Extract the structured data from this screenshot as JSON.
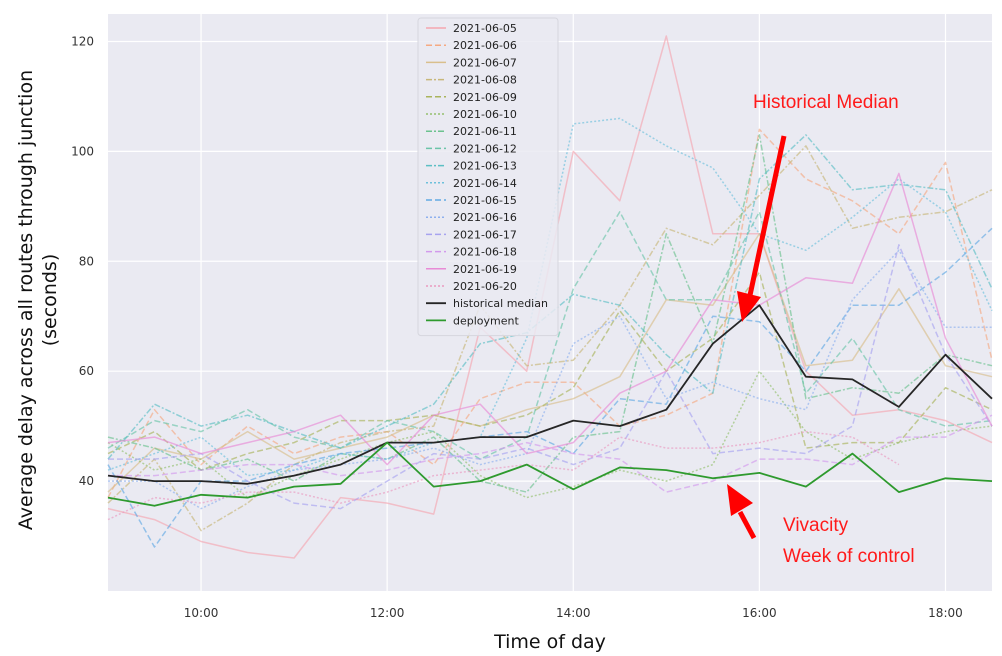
{
  "chart_data": {
    "type": "line",
    "xlabel": "Time of day",
    "ylabel_lines": [
      "Average delay across all routes through junction",
      "(seconds)"
    ],
    "xlim": [
      9.0,
      18.5
    ],
    "ylim": [
      20,
      125
    ],
    "x_ticks": [
      {
        "value": 10,
        "label": "10:00"
      },
      {
        "value": 12,
        "label": "12:00"
      },
      {
        "value": 14,
        "label": "14:00"
      },
      {
        "value": 16,
        "label": "16:00"
      },
      {
        "value": 18,
        "label": "18:00"
      }
    ],
    "y_ticks": [
      {
        "value": 40,
        "label": "40"
      },
      {
        "value": 60,
        "label": "60"
      },
      {
        "value": 80,
        "label": "80"
      },
      {
        "value": 100,
        "label": "100"
      },
      {
        "value": 120,
        "label": "120"
      }
    ],
    "grid": true,
    "legend_position": "top-center",
    "x": [
      9.0,
      9.5,
      10.0,
      10.5,
      11.0,
      11.5,
      12.0,
      12.5,
      13.0,
      13.5,
      14.0,
      14.5,
      15.0,
      15.5,
      16.0,
      16.5,
      17.0,
      17.5,
      18.0,
      18.5
    ],
    "series": [
      {
        "name": "2021-06-05",
        "color": "#f4a6b0",
        "dash": "",
        "values": [
          35,
          33,
          29,
          27,
          26,
          37,
          36,
          34,
          68,
          60,
          100,
          91,
          121,
          85,
          85,
          60,
          52,
          53,
          51,
          47
        ]
      },
      {
        "name": "2021-06-06",
        "color": "#f5a982",
        "dash": "6,3",
        "values": [
          37,
          53,
          43,
          50,
          45,
          48,
          49,
          43,
          55,
          58,
          58,
          50,
          52,
          56,
          104,
          95,
          91,
          85,
          98,
          62
        ]
      },
      {
        "name": "2021-06-07",
        "color": "#d9bf8c",
        "dash": "",
        "values": [
          38,
          46,
          44,
          49,
          44,
          46,
          48,
          52,
          50,
          53,
          55,
          59,
          73,
          72,
          85,
          61,
          62,
          75,
          61,
          59
        ]
      },
      {
        "name": "2021-06-08",
        "color": "#c8b77a",
        "dash": "6,2,2,2",
        "values": [
          36,
          44,
          31,
          36,
          43,
          47,
          49,
          50,
          72,
          61,
          62,
          72,
          86,
          83,
          92,
          101,
          86,
          88,
          89,
          93
        ]
      },
      {
        "name": "2021-06-09",
        "color": "#a9b45c",
        "dash": "6,3",
        "values": [
          45,
          49,
          42,
          45,
          47,
          51,
          51,
          52,
          50,
          52,
          57,
          71,
          60,
          66,
          78,
          46,
          47,
          47,
          57,
          53
        ]
      },
      {
        "name": "2021-06-10",
        "color": "#94c06e",
        "dash": "2,2",
        "values": [
          47,
          42,
          44,
          37,
          41,
          44,
          47,
          49,
          41,
          37,
          39,
          42,
          40,
          43,
          60,
          49,
          44,
          47,
          49,
          50
        ]
      },
      {
        "name": "2021-06-11",
        "color": "#6cc28f",
        "dash": "6,2,2,2",
        "values": [
          48,
          46,
          42,
          44,
          40,
          45,
          44,
          48,
          40,
          38,
          48,
          49,
          85,
          65,
          103,
          55,
          57,
          56,
          63,
          61
        ]
      },
      {
        "name": "2021-06-12",
        "color": "#6cc4a9",
        "dash": "6,3",
        "values": [
          46,
          51,
          49,
          53,
          48,
          46,
          51,
          49,
          44,
          48,
          75,
          89,
          73,
          73,
          89,
          56,
          66,
          53,
          50,
          51
        ]
      },
      {
        "name": "2021-06-13",
        "color": "#5cbfc4",
        "dash": "6,2,2,2",
        "values": [
          44,
          54,
          50,
          52,
          49,
          46,
          50,
          54,
          65,
          67,
          74,
          72,
          63,
          56,
          95,
          103,
          93,
          94,
          93,
          75
        ]
      },
      {
        "name": "2021-06-14",
        "color": "#6dc0db",
        "dash": "2,2",
        "values": [
          42,
          45,
          48,
          41,
          42,
          45,
          44,
          47,
          48,
          66,
          105,
          106,
          101,
          97,
          85,
          82,
          88,
          95,
          89,
          71
        ]
      },
      {
        "name": "2021-06-15",
        "color": "#63a9e3",
        "dash": "6,3",
        "values": [
          43,
          28,
          40,
          40,
          43,
          45,
          46,
          47,
          48,
          49,
          45,
          55,
          54,
          70,
          69,
          60,
          72,
          72,
          78,
          86
        ]
      },
      {
        "name": "2021-06-16",
        "color": "#8eb0ee",
        "dash": "2,2",
        "values": [
          40,
          40,
          35,
          39,
          42,
          43,
          44,
          46,
          43,
          45,
          65,
          70,
          55,
          58,
          55,
          53,
          73,
          82,
          68,
          68
        ]
      },
      {
        "name": "2021-06-17",
        "color": "#a7a3ef",
        "dash": "6,3",
        "values": [
          44,
          44,
          45,
          40,
          36,
          35,
          40,
          45,
          44,
          46,
          43,
          46,
          60,
          45,
          46,
          45,
          50,
          83,
          63,
          50
        ]
      },
      {
        "name": "2021-06-18",
        "color": "#d29aec",
        "dash": "6,3",
        "values": [
          41,
          41,
          42,
          43,
          43,
          41,
          42,
          44,
          45,
          47,
          45,
          44,
          38,
          40,
          44,
          44,
          43,
          48,
          48,
          52
        ]
      },
      {
        "name": "2021-06-19",
        "color": "#e88bd6",
        "dash": "",
        "values": [
          47,
          48,
          45,
          47,
          49,
          52,
          43,
          52,
          54,
          45,
          47,
          56,
          60,
          73,
          72,
          77,
          76,
          96,
          66,
          50
        ]
      },
      {
        "name": "2021-06-20",
        "color": "#e99ac0",
        "dash": "2,2",
        "values": [
          33,
          37,
          36,
          38,
          38,
          36,
          38,
          41,
          42,
          43,
          42,
          48,
          46,
          46,
          47,
          49,
          48,
          43,
          null,
          null
        ]
      },
      {
        "name": "historical median",
        "color": "#262626",
        "dash": "",
        "width": 1.8,
        "values": [
          41,
          40,
          40,
          39.5,
          41,
          43,
          47,
          47,
          48,
          48,
          51,
          50,
          53,
          65,
          72,
          59,
          58.5,
          53.5,
          63,
          55
        ]
      },
      {
        "name": "deployment",
        "color": "#2e9a2e",
        "dash": "",
        "width": 1.8,
        "values": [
          37,
          35.5,
          37.5,
          37,
          39,
          39.5,
          47,
          39,
          40,
          43,
          38.5,
          42.5,
          42,
          40.5,
          41.5,
          39,
          45,
          38,
          40.5,
          40
        ]
      }
    ],
    "annotations": [
      {
        "text_lines": [
          "Historical Median"
        ],
        "x": 16.8,
        "y": 107,
        "color": "#ff1a1a"
      },
      {
        "text_lines": [
          "Vivacity",
          "Week of control"
        ],
        "x": 16.4,
        "y": 29,
        "color": "#ff1a1a"
      }
    ]
  }
}
